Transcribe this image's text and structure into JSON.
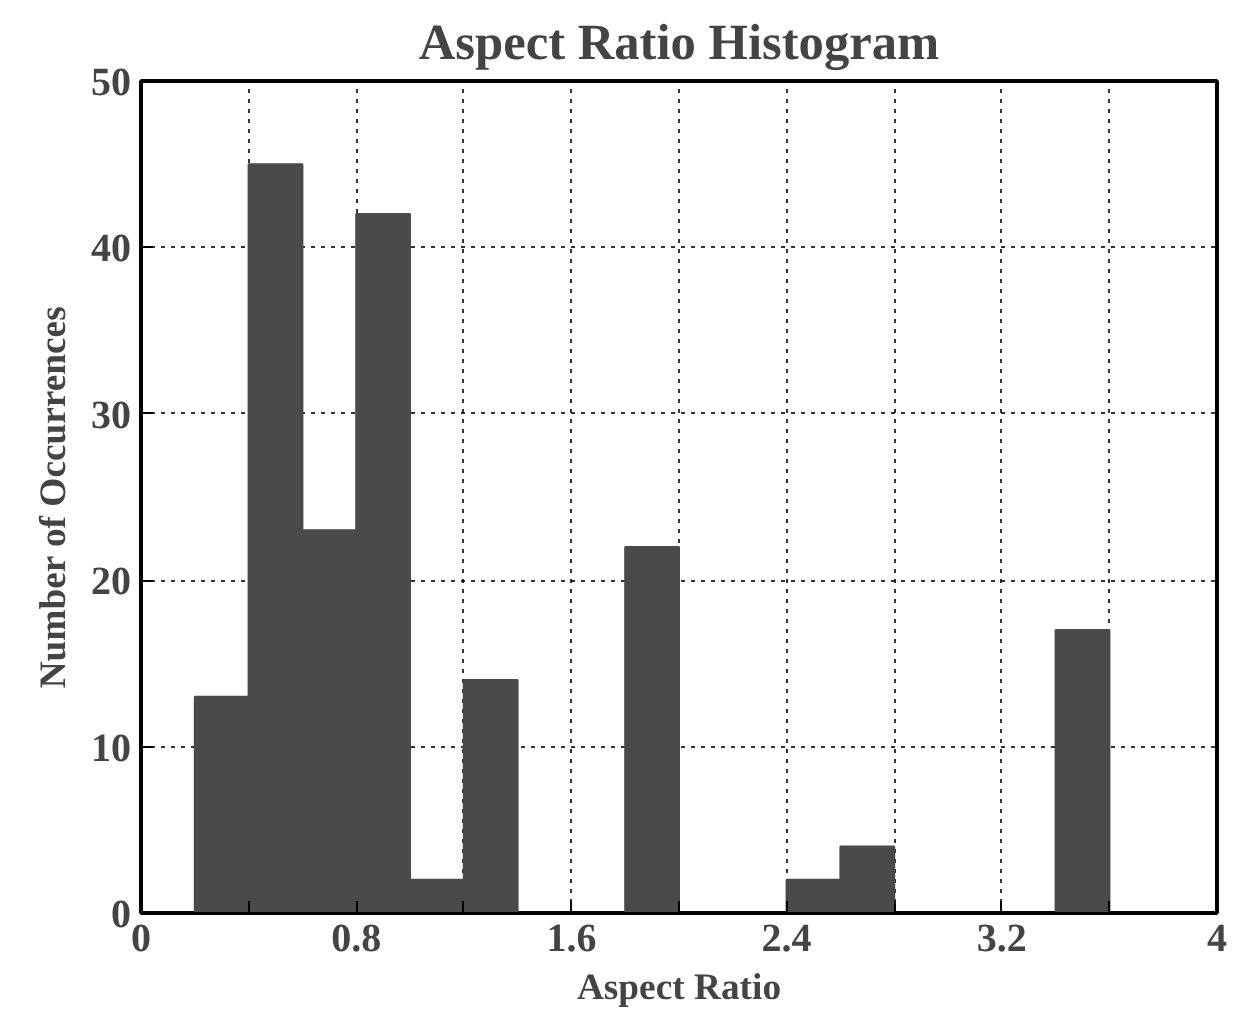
{
  "chart_data": {
    "type": "histogram",
    "title": "Aspect Ratio Histogram",
    "xlabel": "Aspect Ratio",
    "ylabel": "Number of Occurrences",
    "bins": [
      0.2,
      0.4,
      0.6,
      0.8,
      1.0,
      1.2,
      1.4,
      1.6,
      1.8,
      2.0,
      2.2,
      2.4,
      2.6,
      2.8,
      3.0,
      3.2,
      3.4,
      3.6
    ],
    "values": [
      13,
      45,
      23,
      42,
      2,
      14,
      0,
      0,
      22,
      0,
      0,
      2,
      4,
      0,
      0,
      0,
      17
    ],
    "color": "#4a4a4a",
    "xlim": [
      0,
      4
    ],
    "xticks": [
      0,
      {
        "value": 0.4,
        "label": null
      },
      0.8,
      {
        "value": 1.2,
        "label": null
      },
      1.6,
      {
        "value": 2.0,
        "label": null
      },
      2.4,
      {
        "value": 2.8,
        "label": null
      },
      3.2,
      {
        "value": 3.6,
        "label": null
      },
      4
    ],
    "ylim": [
      0,
      50
    ],
    "yticks": [
      0,
      10,
      20,
      30,
      40,
      50
    ],
    "grid": true
  }
}
